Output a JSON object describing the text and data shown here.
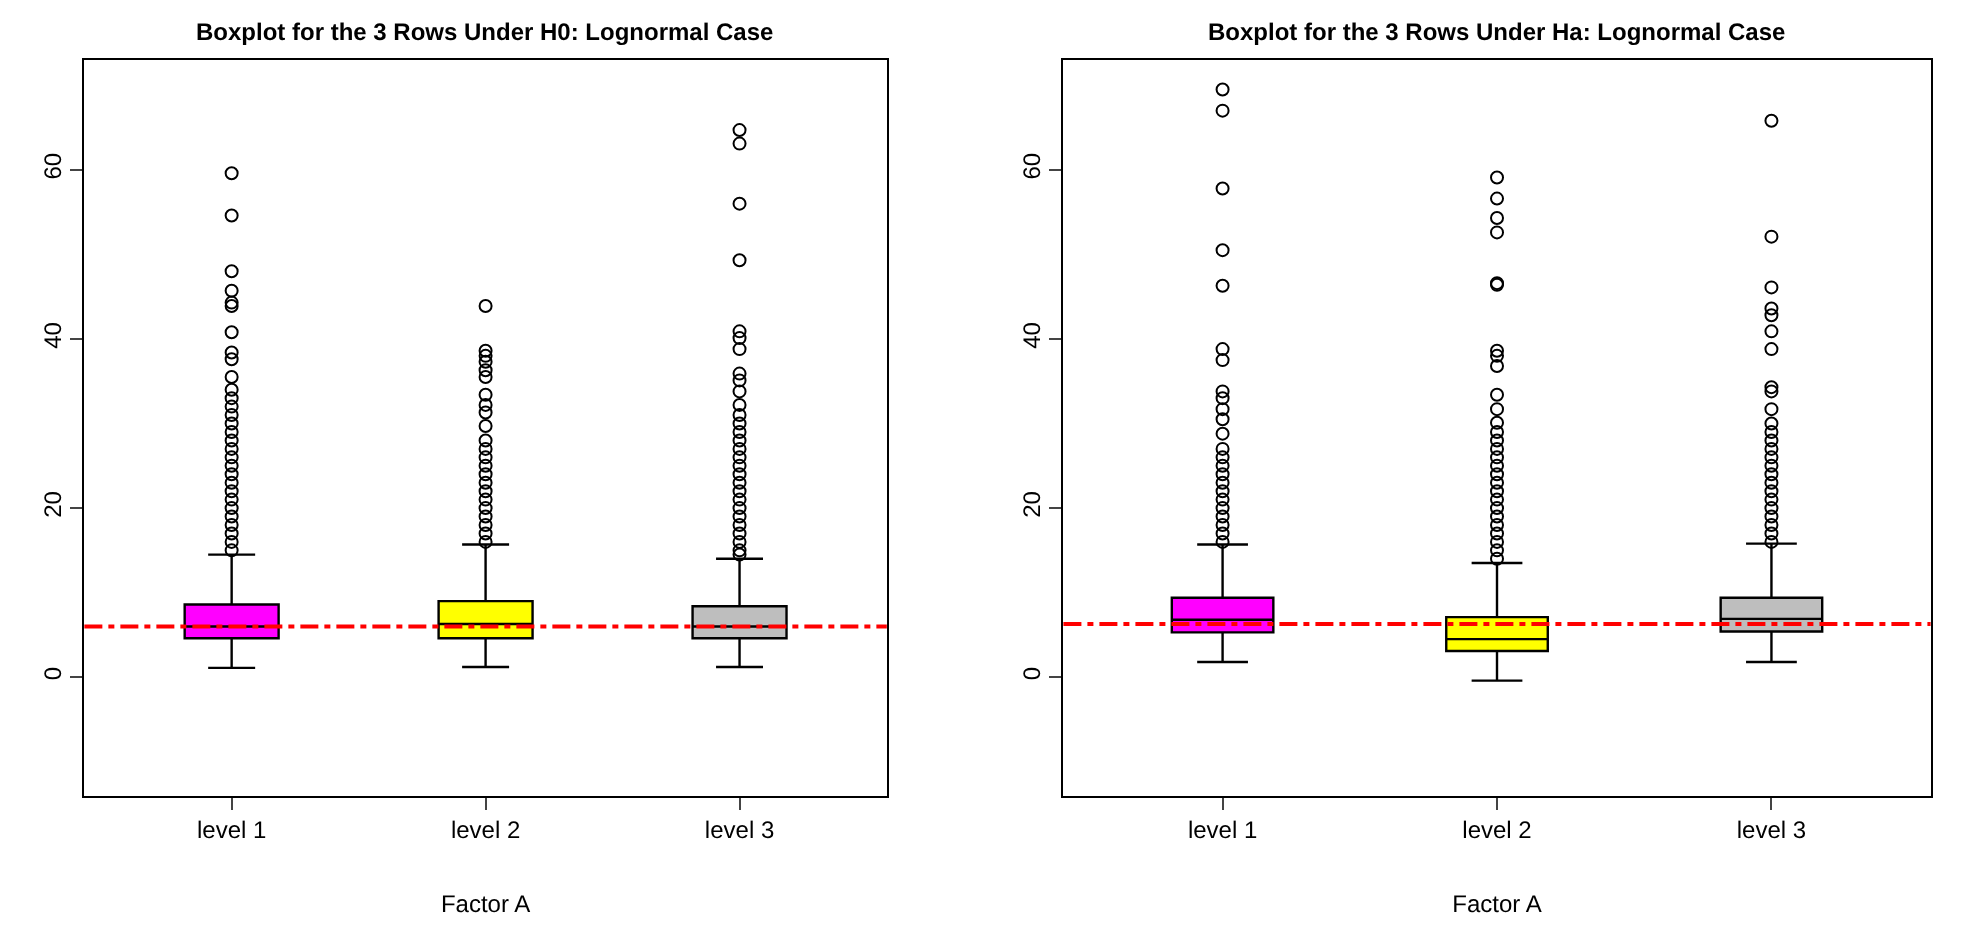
{
  "chart_data": [
    {
      "type": "box",
      "title": "Boxplot for the 3 Rows Under H0: Lognormal Case",
      "xlabel": "Factor A",
      "categories": [
        "level 1",
        "level 2",
        "level 3"
      ],
      "colors": [
        "#ff00ff",
        "#ffff00",
        "#bebebe"
      ],
      "ylim": [
        -14,
        73
      ],
      "yticks": [
        0,
        20,
        40,
        60
      ],
      "marker": "circle",
      "boxes": [
        {
          "low": 1.1,
          "q1": 4.6,
          "median": 6.0,
          "q3": 8.6,
          "high": 14.5,
          "outliers": [
            59.6,
            54.6,
            48.0,
            45.7,
            44.3,
            43.9,
            40.8,
            38.4,
            37.6,
            35.5,
            34,
            33,
            32,
            31,
            30,
            29,
            28,
            27,
            26,
            25,
            24,
            23,
            22,
            21,
            20,
            19,
            18,
            17,
            16,
            15
          ]
        },
        {
          "low": 1.2,
          "q1": 4.6,
          "median": 6.3,
          "q3": 9.0,
          "high": 15.7,
          "outliers": [
            43.9,
            38.6,
            38.0,
            37.3,
            36.3,
            35.5,
            33.4,
            32.2,
            31.3,
            29.7,
            28,
            27,
            26,
            25,
            24,
            23,
            22,
            21,
            20,
            19,
            18,
            17,
            16
          ]
        },
        {
          "low": 1.2,
          "q1": 4.6,
          "median": 6.0,
          "q3": 8.4,
          "high": 14.0,
          "outliers": [
            64.7,
            63.1,
            56.0,
            49.3,
            40.9,
            40.1,
            38.8,
            35.9,
            35.1,
            33.8,
            32.2,
            31,
            30,
            29,
            28,
            27,
            26,
            25,
            24,
            23,
            22,
            21,
            20,
            19,
            18,
            17,
            16,
            15,
            14.5
          ]
        }
      ],
      "ref_lines": [
        {
          "axis": "y",
          "value": 6.0,
          "color": "#ff0000",
          "line_style": "dashdot"
        }
      ]
    },
    {
      "type": "box",
      "title": "Boxplot for the 3 Rows Under Ha: Lognormal Case",
      "xlabel": "Factor A",
      "categories": [
        "level 1",
        "level 2",
        "level 3"
      ],
      "colors": [
        "#ff00ff",
        "#ffff00",
        "#bebebe"
      ],
      "ylim": [
        -14,
        73
      ],
      "yticks": [
        0,
        20,
        40,
        60
      ],
      "marker": "circle",
      "boxes": [
        {
          "low": 1.8,
          "q1": 5.3,
          "median": 6.8,
          "q3": 9.4,
          "high": 15.7,
          "outliers": [
            69.5,
            67.0,
            57.8,
            50.5,
            46.3,
            38.8,
            37.5,
            33.8,
            33.0,
            31.7,
            30.5,
            28.8,
            27,
            26,
            25,
            24,
            23,
            22,
            21,
            20,
            19,
            18,
            17,
            16
          ]
        },
        {
          "low": -0.4,
          "q1": 3.1,
          "median": 4.5,
          "q3": 7.1,
          "high": 13.5,
          "outliers": [
            59.1,
            56.6,
            54.3,
            52.6,
            46.6,
            46.4,
            38.6,
            38.0,
            36.8,
            33.4,
            31.7,
            30.1,
            29,
            28,
            27,
            26,
            25,
            24,
            23,
            22,
            21,
            20,
            19,
            18,
            17,
            16,
            15,
            14
          ]
        },
        {
          "low": 1.8,
          "q1": 5.4,
          "median": 6.9,
          "q3": 9.4,
          "high": 15.8,
          "outliers": [
            65.8,
            52.1,
            46.1,
            43.6,
            42.8,
            40.9,
            38.8,
            34.3,
            33.8,
            31.7,
            30,
            29,
            28,
            27,
            26,
            25,
            24,
            23,
            22,
            21,
            20,
            19,
            18,
            17,
            16
          ]
        }
      ],
      "ref_lines": [
        {
          "axis": "y",
          "value": 6.3,
          "color": "#ff0000",
          "line_style": "dashdot"
        }
      ]
    }
  ]
}
